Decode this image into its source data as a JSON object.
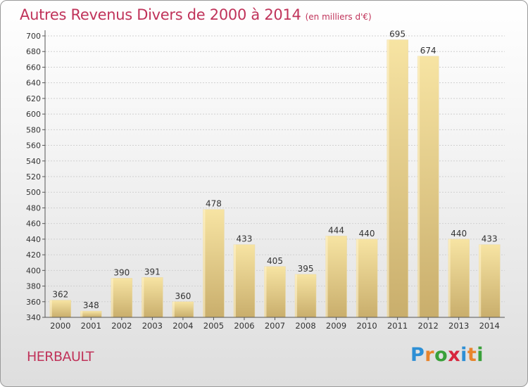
{
  "title": "Autres Revenus Divers de 2000 à 2014",
  "subtitle": "(en milliers d'€)",
  "commune": "HERBAULT",
  "logo": {
    "text": "Proxiti",
    "letters": [
      "P",
      "r",
      "o",
      "x",
      "i",
      "t",
      "i"
    ],
    "colors": [
      "#2d8fd5",
      "#e8842c",
      "#3aa03a",
      "#d7263d",
      "#2d8fd5",
      "#e8842c",
      "#3aa03a"
    ]
  },
  "colors": {
    "title": "#c0335a",
    "bar_light": "#f7e4a3",
    "bar_dark": "#c9ae6c",
    "axis": "#555555",
    "grid": "#d0d0d0"
  },
  "chart_data": {
    "type": "bar",
    "categories": [
      "2000",
      "2001",
      "2002",
      "2003",
      "2004",
      "2005",
      "2006",
      "2007",
      "2008",
      "2009",
      "2010",
      "2011",
      "2012",
      "2013",
      "2014"
    ],
    "values": [
      362,
      348,
      390,
      391,
      360,
      478,
      433,
      405,
      395,
      444,
      440,
      695,
      674,
      440,
      433
    ],
    "ylim": [
      340,
      700
    ],
    "yticks": [
      340,
      360,
      380,
      400,
      420,
      440,
      460,
      480,
      500,
      520,
      540,
      560,
      580,
      600,
      620,
      640,
      660,
      680,
      700
    ],
    "grid": "horizontal",
    "xlabel": "",
    "ylabel": ""
  }
}
